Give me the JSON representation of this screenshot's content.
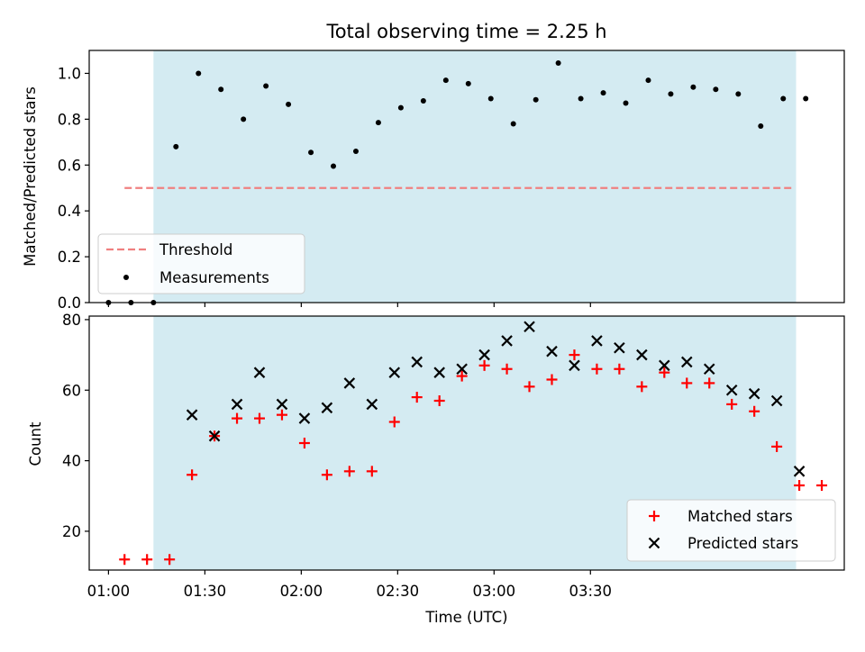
{
  "figure": {
    "title": "Total observing time = 2.25 h"
  },
  "chart_data": [
    {
      "type": "scatter",
      "name": "ratio-panel",
      "ylabel": "Matched/Predicted stars",
      "ylim": [
        0.0,
        1.1
      ],
      "yticks": [
        "0.0",
        "0.2",
        "0.4",
        "0.6",
        "0.8",
        "1.0"
      ],
      "xlim_min": [
        -6,
        229
      ],
      "shaded_region_min": [
        14,
        214
      ],
      "shade_color": "#add8e6",
      "threshold": {
        "label": "Threshold",
        "y": 0.5,
        "x_range_min": [
          5,
          213
        ],
        "color": "#f08080",
        "style": "dashed"
      },
      "legend": {
        "position": "lower-left",
        "entries": [
          "Threshold",
          "Measurements"
        ]
      },
      "series": [
        {
          "name": "Measurements",
          "marker": "dot",
          "color": "#000000",
          "x_min": [
            0,
            7,
            14,
            21,
            28,
            35,
            42,
            49,
            56,
            63,
            70,
            77,
            84,
            91,
            98,
            105,
            112,
            119,
            126,
            133,
            140,
            147,
            154,
            161,
            168,
            175,
            182,
            189,
            196,
            203,
            210,
            217
          ],
          "y": [
            0.0,
            0.0,
            0.0,
            0.68,
            1.0,
            0.93,
            0.8,
            0.945,
            0.865,
            0.655,
            0.595,
            0.66,
            0.785,
            0.85,
            0.88,
            0.97,
            0.955,
            0.89,
            0.78,
            0.885,
            1.045,
            0.89,
            0.915,
            0.87,
            0.97,
            0.91,
            0.94,
            0.93,
            0.91,
            0.77,
            0.89,
            0.89
          ]
        }
      ]
    },
    {
      "type": "scatter",
      "name": "count-panel",
      "ylabel": "Count",
      "xlabel": "Time (UTC)",
      "ylim": [
        9,
        81
      ],
      "yticks": [
        "20",
        "40",
        "60",
        "80"
      ],
      "xticks": [
        "01:00",
        "01:30",
        "02:00",
        "02:30",
        "03:00",
        "03:30"
      ],
      "legend": {
        "position": "lower-right",
        "entries": [
          "Matched stars",
          "Predicted stars"
        ]
      },
      "series": [
        {
          "name": "Matched stars",
          "marker": "plus",
          "color": "#ff0000",
          "x_min": [
            5,
            12,
            19,
            26,
            33,
            40,
            47,
            54,
            61,
            68,
            75,
            82,
            89,
            96,
            103,
            110,
            117,
            124,
            131,
            138,
            145,
            152,
            159,
            166,
            173,
            180,
            187,
            194,
            201,
            208,
            215,
            222
          ],
          "y": [
            12,
            12,
            12,
            36,
            47,
            52,
            52,
            53,
            45,
            36,
            37,
            37,
            51,
            58,
            57,
            64,
            67,
            66,
            61,
            63,
            70,
            66,
            66,
            61,
            65,
            62,
            62,
            56,
            54,
            44,
            33,
            33
          ]
        },
        {
          "name": "Predicted stars",
          "marker": "x",
          "color": "#000000",
          "x_min": [
            26,
            33,
            40,
            47,
            54,
            61,
            68,
            75,
            82,
            89,
            96,
            103,
            110,
            117,
            124,
            131,
            138,
            145,
            152,
            159,
            166,
            173,
            180,
            187,
            194,
            201,
            208,
            215
          ],
          "y": [
            53,
            47,
            56,
            65,
            56,
            52,
            55,
            62,
            56,
            65,
            68,
            65,
            66,
            70,
            74,
            78,
            71,
            67,
            74,
            72,
            70,
            67,
            68,
            66,
            60,
            59,
            57,
            37
          ]
        }
      ]
    }
  ]
}
